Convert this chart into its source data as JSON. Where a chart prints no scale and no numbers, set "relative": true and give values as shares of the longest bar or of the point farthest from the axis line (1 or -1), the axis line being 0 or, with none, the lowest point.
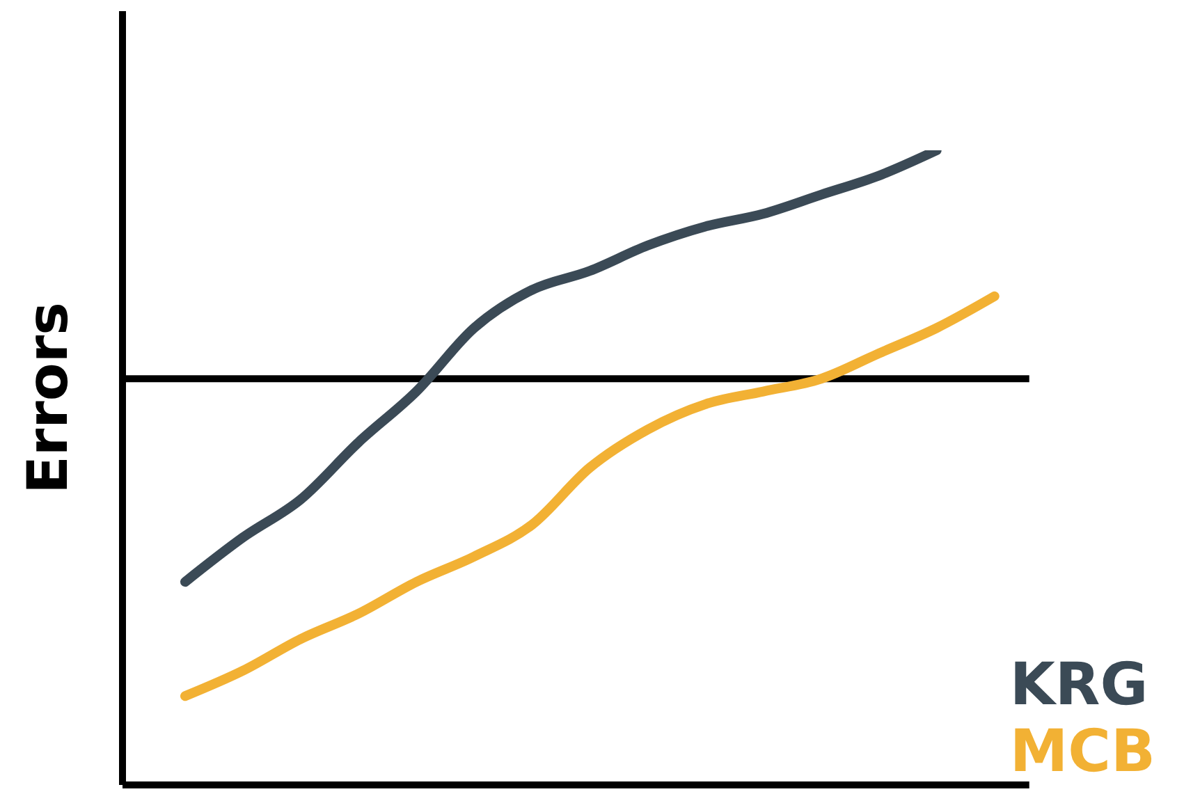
{
  "chart_data": {
    "type": "line",
    "relative": true,
    "ylabel": "Errors",
    "categories": [
      null,
      null,
      null,
      null,
      null,
      null,
      null,
      null,
      null,
      null,
      null,
      null,
      null,
      null,
      null
    ],
    "series": [
      {
        "name": "KRG",
        "color": "#3b4a56",
        "values": [
          0.32,
          0.39,
          0.45,
          0.54,
          0.62,
          0.72,
          0.78,
          0.81,
          0.85,
          0.88,
          0.9,
          0.93,
          0.96,
          1,
          null
        ]
      },
      {
        "name": "MCB",
        "color": "#f2b134",
        "values": [
          0.14,
          0.18,
          0.23,
          0.27,
          0.32,
          0.36,
          0.41,
          0.5,
          0.56,
          0.6,
          0.62,
          0.64,
          0.68,
          0.72,
          0.77
        ]
      }
    ],
    "ref_lines": [
      {
        "axis": "y",
        "value": 0.64,
        "color": "#000000"
      }
    ],
    "legend": "bottom right",
    "grid": false,
    "marker": "none",
    "line_style": "solid"
  }
}
